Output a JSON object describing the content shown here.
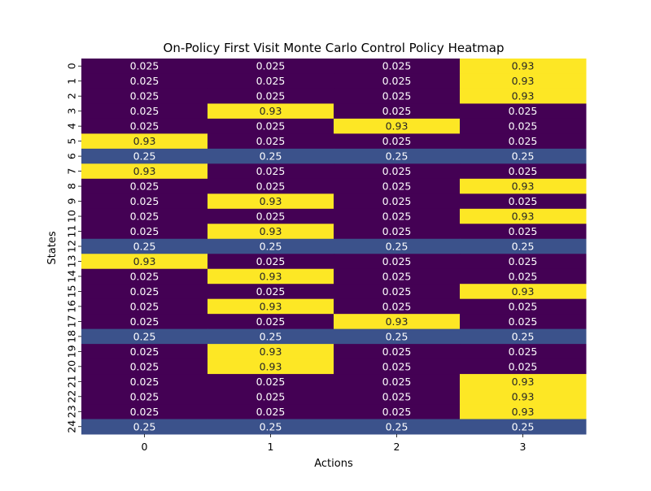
{
  "chart_data": {
    "type": "heatmap",
    "title": "On-Policy First Visit Monte Carlo Control Policy Heatmap",
    "xlabel": "Actions",
    "ylabel": "States",
    "x_categories": [
      "0",
      "1",
      "2",
      "3"
    ],
    "y_categories": [
      "0",
      "1",
      "2",
      "3",
      "4",
      "5",
      "6",
      "7",
      "8",
      "9",
      "10",
      "11",
      "12",
      "13",
      "14",
      "15",
      "16",
      "17",
      "18",
      "19",
      "20",
      "21",
      "22",
      "23",
      "24"
    ],
    "values": [
      [
        0.025,
        0.025,
        0.025,
        0.93
      ],
      [
        0.025,
        0.025,
        0.025,
        0.93
      ],
      [
        0.025,
        0.025,
        0.025,
        0.93
      ],
      [
        0.025,
        0.93,
        0.025,
        0.025
      ],
      [
        0.025,
        0.025,
        0.93,
        0.025
      ],
      [
        0.93,
        0.025,
        0.025,
        0.025
      ],
      [
        0.25,
        0.25,
        0.25,
        0.25
      ],
      [
        0.93,
        0.025,
        0.025,
        0.025
      ],
      [
        0.025,
        0.025,
        0.025,
        0.93
      ],
      [
        0.025,
        0.93,
        0.025,
        0.025
      ],
      [
        0.025,
        0.025,
        0.025,
        0.93
      ],
      [
        0.025,
        0.93,
        0.025,
        0.025
      ],
      [
        0.25,
        0.25,
        0.25,
        0.25
      ],
      [
        0.93,
        0.025,
        0.025,
        0.025
      ],
      [
        0.025,
        0.93,
        0.025,
        0.025
      ],
      [
        0.025,
        0.025,
        0.025,
        0.93
      ],
      [
        0.025,
        0.93,
        0.025,
        0.025
      ],
      [
        0.025,
        0.025,
        0.93,
        0.025
      ],
      [
        0.25,
        0.25,
        0.25,
        0.25
      ],
      [
        0.025,
        0.93,
        0.025,
        0.025
      ],
      [
        0.025,
        0.93,
        0.025,
        0.025
      ],
      [
        0.025,
        0.025,
        0.025,
        0.93
      ],
      [
        0.025,
        0.025,
        0.025,
        0.93
      ],
      [
        0.025,
        0.025,
        0.025,
        0.93
      ],
      [
        0.25,
        0.25,
        0.25,
        0.25
      ]
    ],
    "colors": {
      "0.025": "#440154",
      "0.25": "#3b528b",
      "0.93": "#fde725"
    },
    "text_colors": {
      "dark_cell": "#ffffff",
      "light_cell": "#262626"
    }
  }
}
